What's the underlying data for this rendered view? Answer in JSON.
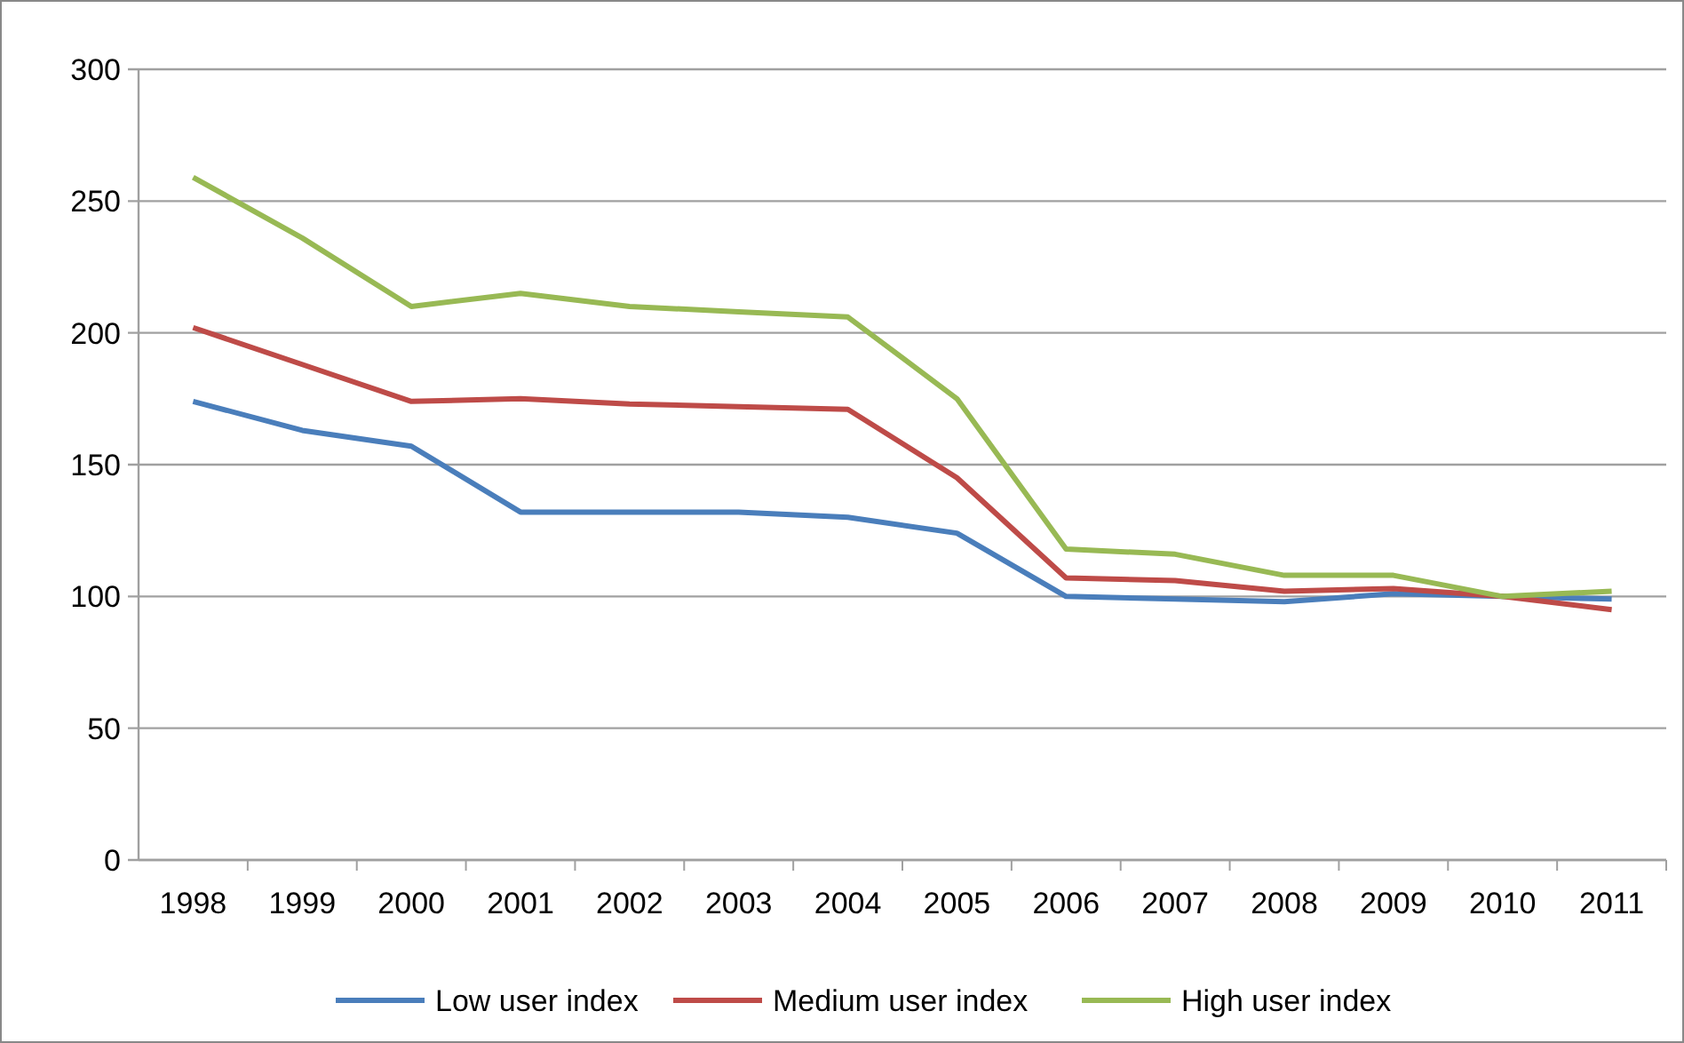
{
  "chart_data": {
    "type": "line",
    "categories": [
      "1998",
      "1999",
      "2000",
      "2001",
      "2002",
      "2003",
      "2004",
      "2005",
      "2006",
      "2007",
      "2008",
      "2009",
      "2010",
      "2011"
    ],
    "series": [
      {
        "name": "Low user index",
        "color": "#4a7ebb",
        "values": [
          174,
          163,
          157,
          132,
          132,
          132,
          130,
          124,
          100,
          99,
          98,
          101,
          100,
          99
        ]
      },
      {
        "name": "Medium user index",
        "color": "#be4b48",
        "values": [
          202,
          188,
          174,
          175,
          173,
          172,
          171,
          145,
          107,
          106,
          102,
          103,
          100,
          95
        ]
      },
      {
        "name": "High user index",
        "color": "#98b954",
        "values": [
          259,
          236,
          210,
          215,
          210,
          208,
          206,
          175,
          118,
          116,
          108,
          108,
          100,
          102
        ]
      }
    ],
    "ylim": [
      0,
      300
    ],
    "yticks": [
      0,
      50,
      100,
      150,
      200,
      250,
      300
    ],
    "grid": "y",
    "legend": "bottom",
    "marker": "none",
    "line_style": "solid"
  }
}
